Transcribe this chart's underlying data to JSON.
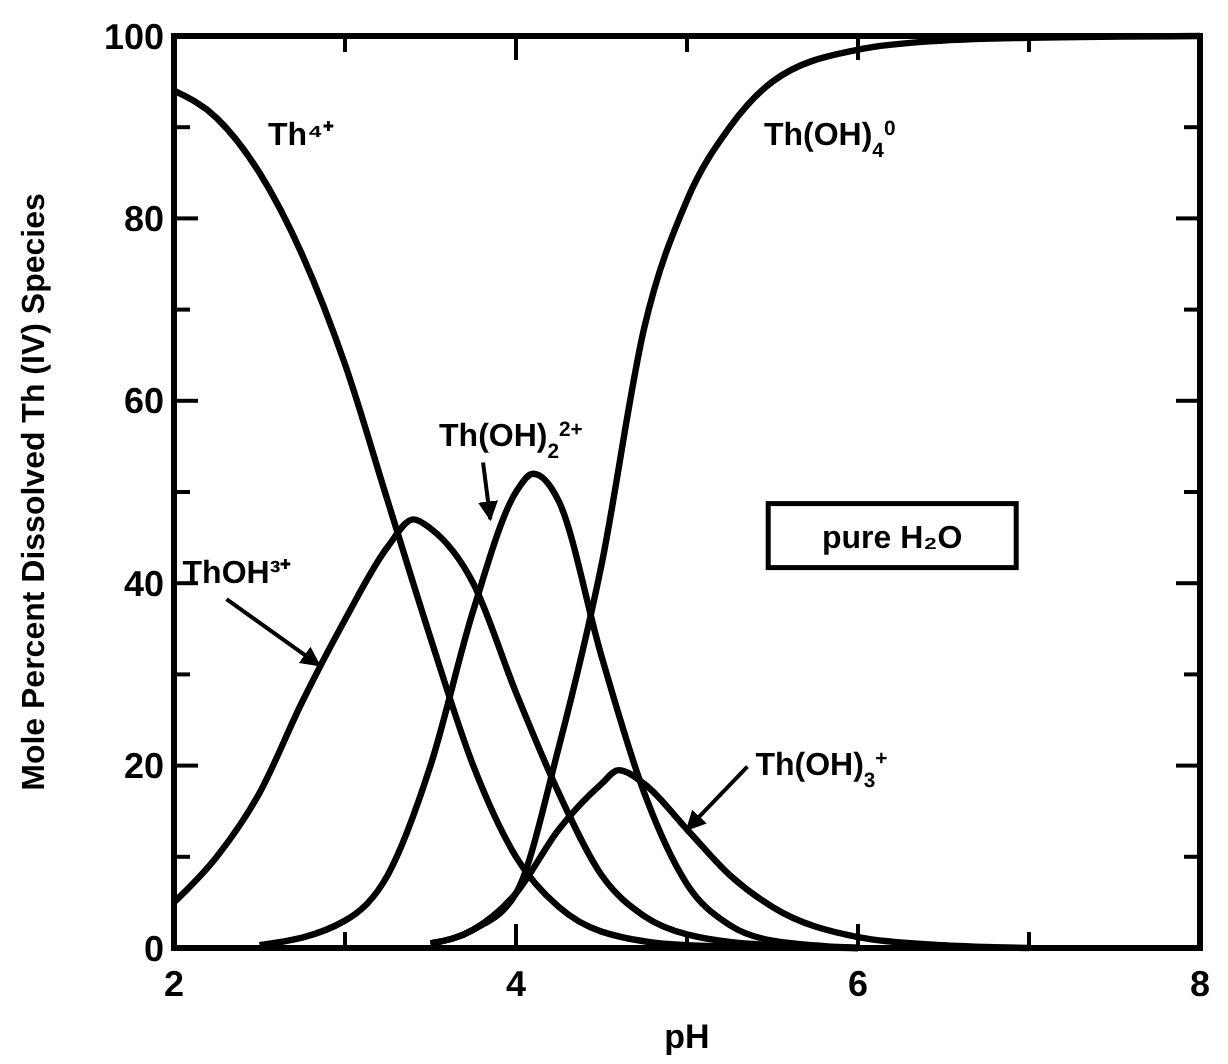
{
  "chart_data": {
    "type": "line",
    "xlabel": "pH",
    "ylabel": "Mole Percent Dissolved Th (IV) Species",
    "xlim": [
      2,
      8
    ],
    "ylim": [
      0,
      100
    ],
    "xticks": [
      2,
      {
        "value": 3,
        "label": null
      },
      4,
      {
        "value": 5,
        "label": null
      },
      6,
      {
        "value": 7,
        "label": null
      },
      8
    ],
    "yticks": [
      0,
      {
        "value": 10,
        "label": null
      },
      20,
      {
        "value": 30,
        "label": null
      },
      40,
      {
        "value": 50,
        "label": null
      },
      60,
      {
        "value": 70,
        "label": null
      },
      80,
      {
        "value": 90,
        "label": null
      },
      100
    ],
    "grid": false,
    "marker": "none",
    "line_style": "solid",
    "annotations": [
      "pure H₂O"
    ],
    "series": [
      {
        "name": "Th⁴⁺",
        "color": "#000000",
        "x": [
          2,
          2.25,
          2.5,
          2.75,
          3,
          3.25,
          3.5,
          3.75,
          4,
          4.25,
          4.5,
          5,
          5.5,
          6
        ],
        "values": [
          94,
          91,
          85,
          76,
          64,
          49,
          34,
          20,
          10,
          4.5,
          1.8,
          0.3,
          0.1,
          0
        ]
      },
      {
        "name": "ThOH³⁺",
        "color": "#000000",
        "x": [
          2,
          2.25,
          2.5,
          2.75,
          3,
          3.25,
          3.4,
          3.5,
          3.75,
          4,
          4.25,
          4.5,
          4.75,
          5,
          5.5,
          6
        ],
        "values": [
          5,
          10,
          17,
          27,
          36,
          44,
          47,
          46,
          40,
          28,
          17,
          8,
          3.5,
          1.5,
          0.3,
          0
        ]
      },
      {
        "name": "Th(OH)$_{2}$$^{2+}$",
        "color": "#000000",
        "x": [
          2.5,
          3,
          3.25,
          3.5,
          3.75,
          4,
          4.1,
          4.25,
          4.5,
          4.75,
          5,
          5.25,
          5.5,
          6
        ],
        "values": [
          0.3,
          3,
          8,
          20,
          37,
          50,
          52,
          49,
          32,
          17,
          7,
          2.5,
          0.8,
          0
        ]
      },
      {
        "name": "Th(OH)$_{3}$$^{+}$",
        "color": "#000000",
        "x": [
          3.5,
          3.75,
          4,
          4.25,
          4.5,
          4.6,
          4.75,
          5,
          5.25,
          5.5,
          6,
          6.5,
          7
        ],
        "values": [
          0.5,
          2,
          6,
          13,
          18,
          19.5,
          18,
          13,
          8,
          4.5,
          1.2,
          0.3,
          0
        ]
      },
      {
        "name": "Th(OH)$_{4}$$^{0}$",
        "color": "#000000",
        "x": [
          3.5,
          3.75,
          4,
          4.25,
          4.5,
          4.75,
          5,
          5.25,
          5.5,
          6,
          6.5,
          7,
          8
        ],
        "values": [
          0.5,
          2,
          6,
          22,
          42,
          68,
          82,
          90,
          95,
          98.5,
          99.5,
          99.8,
          100
        ]
      }
    ]
  }
}
